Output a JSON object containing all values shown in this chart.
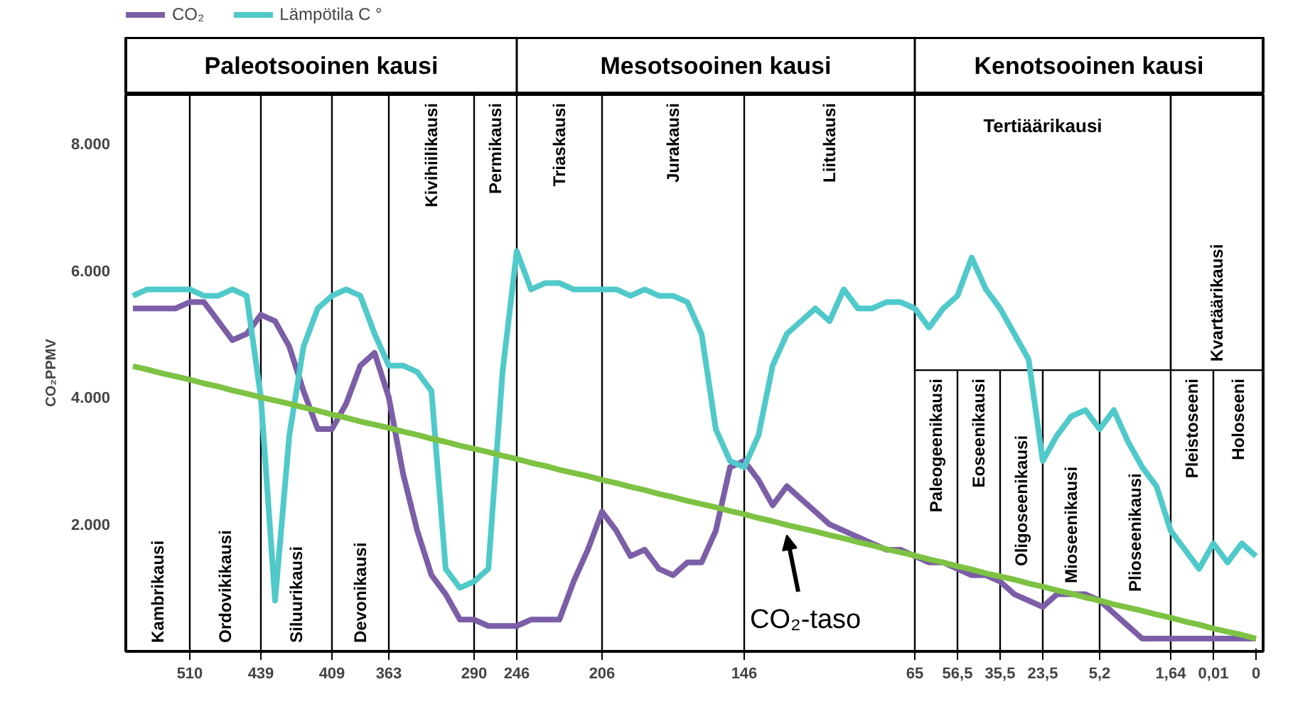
{
  "chart_data": {
    "type": "line",
    "ylabel": "CO₂PPMV",
    "ylim": [
      0,
      8770
    ],
    "yticks": [
      {
        "value": 2000,
        "label": "2.000"
      },
      {
        "value": 4000,
        "label": "4.000"
      },
      {
        "value": 6000,
        "label": "6.000"
      },
      {
        "value": 8000,
        "label": "8.000"
      }
    ],
    "grid": "x",
    "legend": "top left",
    "marker": "none",
    "line_style": "solid",
    "categories": [
      null,
      null,
      null,
      null,
      "510",
      null,
      null,
      null,
      null,
      "439",
      null,
      null,
      null,
      null,
      "409",
      null,
      null,
      null,
      "363",
      null,
      null,
      null,
      null,
      null,
      "290",
      null,
      null,
      "246",
      null,
      null,
      null,
      null,
      null,
      "206",
      null,
      null,
      null,
      null,
      null,
      null,
      null,
      null,
      null,
      "146",
      null,
      null,
      null,
      null,
      null,
      null,
      null,
      null,
      null,
      null,
      null,
      "65",
      null,
      null,
      "56,5",
      null,
      null,
      "35,5",
      null,
      null,
      "23,5",
      null,
      null,
      null,
      "5,2",
      null,
      null,
      null,
      null,
      "1,64",
      null,
      null,
      "0,01",
      null,
      null,
      "0"
    ],
    "series": [
      {
        "name": "CO₂",
        "color": "#7b5ea7",
        "values": [
          5400,
          5400,
          5400,
          5400,
          5500,
          5500,
          5200,
          4900,
          5000,
          5300,
          5200,
          4800,
          4100,
          3500,
          3500,
          3900,
          4500,
          4700,
          4000,
          2800,
          1900,
          1200,
          900,
          500,
          500,
          400,
          400,
          400,
          500,
          500,
          500,
          1100,
          1600,
          2200,
          1900,
          1500,
          1600,
          1300,
          1200,
          1400,
          1400,
          1900,
          2900,
          3000,
          2700,
          2300,
          2600,
          2400,
          2200,
          2000,
          1900,
          1800,
          1700,
          1600,
          1600,
          1500,
          1400,
          1400,
          1300,
          1200,
          1200,
          1100,
          900,
          800,
          700,
          900,
          900,
          900,
          800,
          600,
          400,
          200,
          200,
          200,
          200,
          200,
          200,
          200,
          200,
          200
        ]
      },
      {
        "name": "Lämpötila C °",
        "color": "#4fc9c9",
        "values": [
          5600,
          5700,
          5700,
          5700,
          5700,
          5600,
          5600,
          5700,
          5600,
          4000,
          800,
          3400,
          4800,
          5400,
          5600,
          5700,
          5600,
          5000,
          4500,
          4500,
          4400,
          4100,
          1300,
          1000,
          1100,
          1300,
          4400,
          6300,
          5700,
          5800,
          5800,
          5700,
          5700,
          5700,
          5700,
          5600,
          5700,
          5600,
          5600,
          5500,
          5000,
          3500,
          3000,
          2900,
          3400,
          4500,
          5000,
          5200,
          5400,
          5200,
          5700,
          5400,
          5400,
          5500,
          5500,
          5400,
          5100,
          5400,
          5600,
          6200,
          5700,
          5400,
          5000,
          4600,
          3000,
          3400,
          3700,
          3800,
          3500,
          3800,
          3300,
          2900,
          2600,
          1900,
          1600,
          1300,
          1700,
          1400,
          1700,
          1500
        ]
      },
      {
        "color": "#7dc242",
        "values": [
          4490,
          4440,
          4380,
          4330,
          4280,
          4220,
          4170,
          4110,
          4060,
          4000,
          3950,
          3900,
          3840,
          3790,
          3730,
          3680,
          3620,
          3570,
          3520,
          3460,
          3410,
          3350,
          3300,
          3240,
          3190,
          3140,
          3080,
          3030,
          2970,
          2920,
          2860,
          2810,
          2760,
          2700,
          2650,
          2590,
          2540,
          2480,
          2430,
          2370,
          2320,
          2270,
          2210,
          2160,
          2100,
          2050,
          1990,
          1940,
          1890,
          1830,
          1780,
          1720,
          1670,
          1610,
          1560,
          1510,
          1450,
          1400,
          1340,
          1290,
          1230,
          1180,
          1130,
          1070,
          1020,
          960,
          910,
          850,
          800,
          740,
          690,
          640,
          580,
          530,
          470,
          420,
          360,
          310,
          260,
          200
        ]
      }
    ],
    "annotations": [
      "Kambrikausi",
      "Ordovikikausi",
      "Siluurikausi",
      "Devonikausi",
      "Kivihiilikausi",
      "Permikausi",
      "Triaskausi",
      "Jurakausi",
      "Liitukausi",
      "Paleogeenikausi",
      "Eoseenikausi",
      "Oligoseenikausi",
      "Mioseenikausi",
      "Plioseenikausi",
      "Pleistoseeni",
      "Holoseeni",
      "Tertiäärikausi",
      "Kvartäärikausi",
      "Paleotsooinen kausi",
      "Mesotsooinen kausi",
      "Kenotsooinen kausi",
      {
        "text": "CO₂-taso",
        "y": 1940
      }
    ]
  }
}
